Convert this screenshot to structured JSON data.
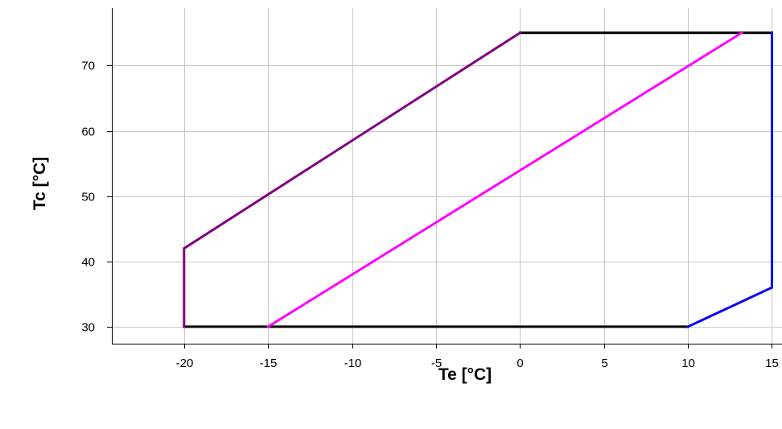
{
  "chart_data": {
    "type": "line",
    "xlabel": "Te [°C]",
    "ylabel": "Tc [°C]",
    "xlim": [
      -24.3,
      15.6
    ],
    "ylim": [
      27.4,
      78.8
    ],
    "x_ticks": [
      -20,
      -15,
      -10,
      -5,
      0,
      5,
      10,
      15
    ],
    "y_ticks": [
      30,
      40,
      50,
      60,
      70
    ],
    "grid": true,
    "legend": "none",
    "series": [
      {
        "color": "#000000",
        "x": [
          -20,
          10
        ],
        "y": [
          30,
          30
        ]
      },
      {
        "color": "#000000",
        "x": [
          0,
          15
        ],
        "y": [
          75,
          75
        ]
      },
      {
        "color": "#800080",
        "x": [
          -20,
          -20,
          0
        ],
        "y": [
          30,
          42,
          75
        ]
      },
      {
        "color": "#0000ff",
        "x": [
          10,
          15,
          15
        ],
        "y": [
          30,
          36,
          75
        ]
      },
      {
        "color": "#ff00ff",
        "x": [
          -15,
          13.2
        ],
        "y": [
          30,
          75
        ]
      }
    ]
  }
}
